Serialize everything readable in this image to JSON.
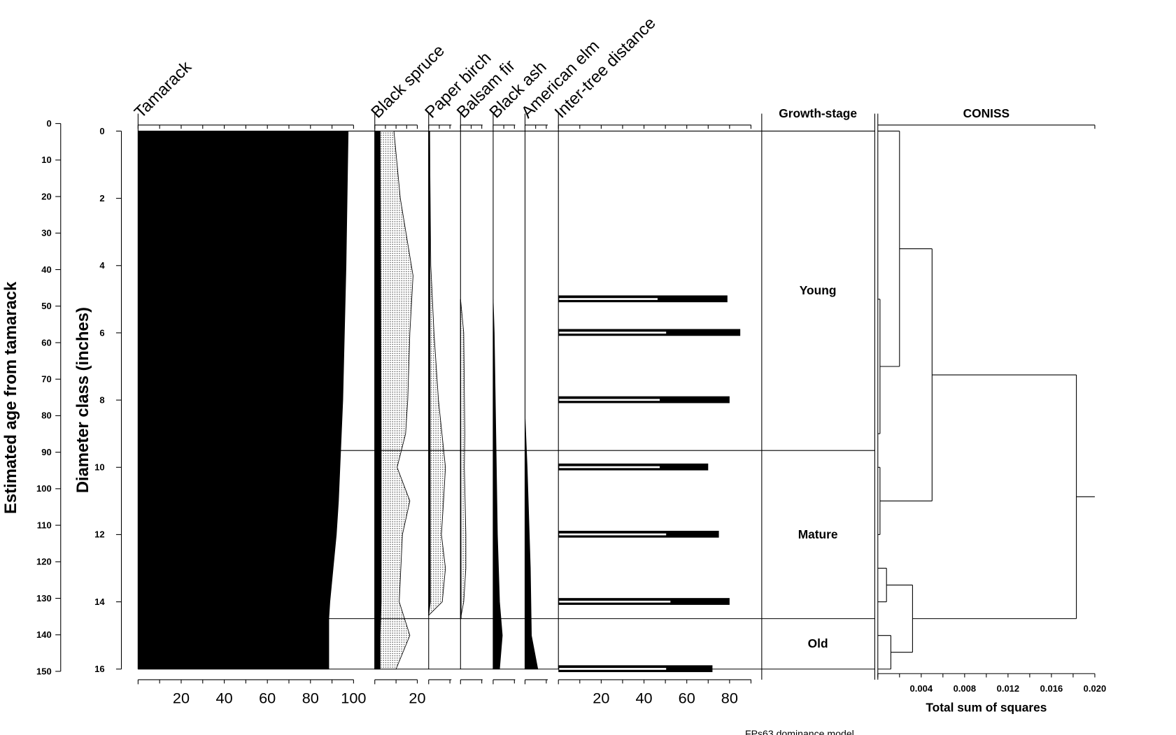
{
  "chart_data": {
    "type": "stratigraphic-diagram",
    "footer": "FPs63 dominance model",
    "age_axis": {
      "label": "Estimated age from tamarack",
      "range": [
        0,
        150
      ],
      "ticks": [
        "0",
        "10",
        "20",
        "30",
        "40",
        "50",
        "60",
        "70",
        "80",
        "90",
        "100",
        "110",
        "120",
        "130",
        "140",
        "150"
      ]
    },
    "depth_axis": {
      "label": "Diameter class (inches)",
      "range": [
        0,
        16
      ],
      "ticks": [
        "0",
        "2",
        "4",
        "6",
        "8",
        "10",
        "12",
        "14",
        "16"
      ]
    },
    "columns": [
      {
        "name": "Tamarack",
        "max": 100,
        "bottom_ticks": [
          "20",
          "40",
          "60",
          "80",
          "100"
        ],
        "values": [
          [
            0,
            97.5
          ],
          [
            4,
            96.5
          ],
          [
            8,
            95
          ],
          [
            9.5,
            94
          ],
          [
            11,
            93
          ],
          [
            12,
            92
          ],
          [
            13,
            90.5
          ],
          [
            14,
            89
          ],
          [
            14.5,
            88.5
          ],
          [
            16,
            88.5
          ]
        ]
      },
      {
        "name": "Black spruce",
        "max": 20,
        "bottom_ticks": [
          "20"
        ],
        "values": [
          [
            0,
            2.5
          ],
          [
            9,
            3
          ],
          [
            14,
            3
          ],
          [
            15,
            2.5
          ],
          [
            16,
            2.5
          ]
        ],
        "exaggerated": [
          [
            0,
            9
          ],
          [
            2,
            12
          ],
          [
            4.3,
            18
          ],
          [
            6,
            16.5
          ],
          [
            8,
            15.5
          ],
          [
            9,
            14.5
          ],
          [
            10,
            10.5
          ],
          [
            11,
            16.5
          ],
          [
            12,
            13
          ],
          [
            14,
            11.5
          ],
          [
            15,
            16.5
          ],
          [
            16,
            10
          ]
        ]
      },
      {
        "name": "Paper birch",
        "max": 10,
        "bottom_ticks": [],
        "values": [
          [
            0,
            0.5
          ],
          [
            14,
            0.8
          ],
          [
            14.4,
            0
          ]
        ],
        "exaggerated": [
          [
            0,
            0.4
          ],
          [
            4,
            1
          ],
          [
            6,
            2.5
          ],
          [
            8,
            4.6
          ],
          [
            10,
            7.9
          ],
          [
            11,
            7
          ],
          [
            12,
            6
          ],
          [
            13,
            7.9
          ],
          [
            14,
            6.4
          ],
          [
            14.4,
            0
          ]
        ]
      },
      {
        "name": "Balsam fir",
        "max": 10,
        "bottom_ticks": [],
        "values": [
          [
            5,
            0
          ],
          [
            14.5,
            0.3
          ]
        ],
        "exaggerated": [
          [
            5,
            0
          ],
          [
            6,
            1.5
          ],
          [
            9,
            2
          ],
          [
            10,
            1.8
          ],
          [
            12,
            2.5
          ],
          [
            13,
            2.5
          ],
          [
            14,
            1.5
          ],
          [
            14.5,
            0
          ]
        ]
      },
      {
        "name": "Black ash",
        "max": 10,
        "bottom_ticks": [],
        "values": [
          [
            5,
            0
          ],
          [
            6,
            0.5
          ],
          [
            10,
            1.5
          ],
          [
            12,
            2
          ],
          [
            14,
            3
          ],
          [
            15,
            4.3
          ],
          [
            16,
            3
          ]
        ]
      },
      {
        "name": "American elm",
        "max": 10,
        "bottom_ticks": [],
        "values": [
          [
            8.5,
            0
          ],
          [
            10,
            1
          ],
          [
            13,
            2.5
          ],
          [
            15,
            3
          ],
          [
            16,
            6
          ]
        ]
      },
      {
        "name": "Inter-tree distance",
        "max": 90,
        "bottom_ticks": [
          "20",
          "40",
          "60",
          "80"
        ],
        "bars": [
          {
            "depth": 5,
            "value": 79,
            "inner": 46
          },
          {
            "depth": 6,
            "value": 85,
            "inner": 50
          },
          {
            "depth": 8,
            "value": 80,
            "inner": 47
          },
          {
            "depth": 10,
            "value": 70,
            "inner": 47
          },
          {
            "depth": 12,
            "value": 75,
            "inner": 50
          },
          {
            "depth": 14,
            "value": 80,
            "inner": 52
          },
          {
            "depth": 16,
            "value": 72,
            "inner": 50
          }
        ]
      }
    ],
    "growth_stage": {
      "label": "Growth-stage",
      "zones": [
        {
          "name": "Young",
          "from": 0,
          "to": 9.5
        },
        {
          "name": "Mature",
          "from": 9.5,
          "to": 14.5
        },
        {
          "name": "Old",
          "from": 14.5,
          "to": 16
        }
      ]
    },
    "coniss": {
      "label": "CONISS",
      "xlabel": "Total sum of squares",
      "range": [
        0,
        0.02
      ],
      "ticks": [
        "0.004",
        "0.008",
        "0.012",
        "0.016",
        "0.020"
      ],
      "nodes": [
        {
          "top": 5,
          "bottom": 9,
          "sos": 0.0002,
          "top_from": 0,
          "bottom_from": 0
        },
        {
          "top": 10,
          "bottom": 12,
          "sos": 0.0002,
          "top_from": 0,
          "bottom_from": 0
        },
        {
          "top": 0,
          "bottom": 7,
          "sos": 0.002,
          "top_from": 0,
          "bottom_from": 0.0002
        },
        {
          "top": 3.5,
          "bottom": 11,
          "sos": 0.005,
          "top_from": 0.002,
          "bottom_from": 0.0002
        },
        {
          "top": 13,
          "bottom": 14,
          "sos": 0.0008,
          "top_from": 0,
          "bottom_from": 0
        },
        {
          "top": 15,
          "bottom": 16,
          "sos": 0.0012,
          "top_from": 0,
          "bottom_from": 0
        },
        {
          "top": 13.5,
          "bottom": 15.5,
          "sos": 0.0032,
          "top_from": 0.0008,
          "bottom_from": 0.0012
        },
        {
          "top": 7.25,
          "bottom": 14.5,
          "sos": 0.0183,
          "top_from": 0.005,
          "bottom_from": 0.0032
        },
        {
          "top": 10.875,
          "bottom": 10.875,
          "sos": 0.02,
          "top_from": 0.0183,
          "bottom_from": 0.0183
        }
      ]
    }
  }
}
